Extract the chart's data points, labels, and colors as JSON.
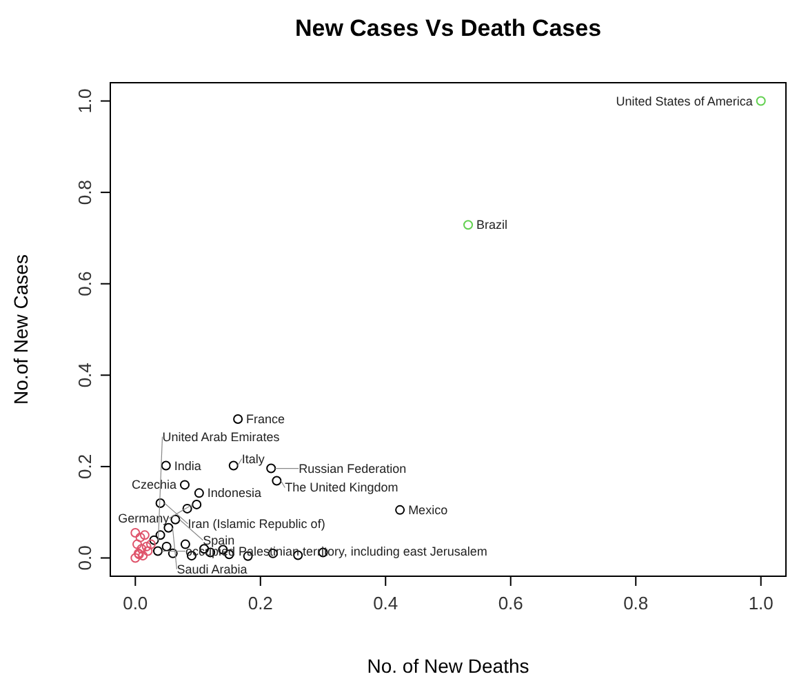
{
  "chart_data": {
    "type": "scatter",
    "title": "New Cases Vs Death Cases",
    "xlabel": "No. of New Deaths",
    "ylabel": "No.of New Cases",
    "xlim": [
      -0.04,
      1.04
    ],
    "ylim": [
      -0.04,
      1.04
    ],
    "xticks": [
      {
        "value": 0,
        "label": "0.0"
      },
      {
        "value": 0.2,
        "label": "0.2"
      },
      {
        "value": 0.4,
        "label": "0.4"
      },
      {
        "value": 0.6,
        "label": "0.6"
      },
      {
        "value": 0.8,
        "label": "0.8"
      },
      {
        "value": 1,
        "label": "1.0"
      }
    ],
    "yticks": [
      {
        "value": 0,
        "label": "0.0"
      },
      {
        "value": 0.2,
        "label": "0.2"
      },
      {
        "value": 0.4,
        "label": "0.4"
      },
      {
        "value": 0.6,
        "label": "0.6"
      },
      {
        "value": 0.8,
        "label": "0.8"
      },
      {
        "value": 1,
        "label": "1.0"
      }
    ],
    "marker": "circle",
    "grid": false,
    "series": [
      {
        "color": "#000000",
        "x": [
          0.164,
          0.049,
          0.157,
          0.217,
          0.226,
          0.079,
          0.102,
          0.04,
          0.098,
          0.083,
          0.423,
          0.064,
          0.053,
          0.03,
          0.036,
          0.06,
          0.09,
          0.12,
          0.15,
          0.18,
          0.22,
          0.26,
          0.3,
          0.05,
          0.08,
          0.11,
          0.14,
          0.04
        ],
        "values": [
          0.304,
          0.202,
          0.202,
          0.196,
          0.169,
          0.16,
          0.142,
          0.12,
          0.117,
          0.108,
          0.105,
          0.084,
          0.066,
          0.039,
          0.015,
          0.01,
          0.005,
          0.012,
          0.008,
          0.004,
          0.01,
          0.006,
          0.012,
          0.025,
          0.03,
          0.02,
          0.018,
          0.05
        ]
      },
      {
        "color": "#61d04f",
        "x": [
          1.0,
          0.532
        ],
        "values": [
          1.0,
          0.729
        ]
      },
      {
        "color": "#df536b",
        "x": [
          0.0,
          0.005,
          0.01,
          0.003,
          0.012,
          0.02,
          0.008,
          0.0,
          0.015,
          0.025,
          0.006,
          0.018
        ],
        "values": [
          0.0,
          0.01,
          0.02,
          0.03,
          0.005,
          0.015,
          0.045,
          0.055,
          0.05,
          0.03,
          0.008,
          0.025
        ]
      }
    ],
    "annotations": [
      {
        "text": "France",
        "x": 0.164,
        "y": 0.304
      },
      {
        "text": "India",
        "x": 0.049,
        "y": 0.202
      },
      {
        "text": "Italy",
        "x": 0.157,
        "y": 0.202
      },
      {
        "text": "Russian Federation",
        "x": 0.217,
        "y": 0.196
      },
      {
        "text": "The United Kingdom",
        "x": 0.226,
        "y": 0.169
      },
      {
        "text": "Czechia",
        "x": 0.079,
        "y": 0.16
      },
      {
        "text": "Indonesia",
        "x": 0.102,
        "y": 0.142
      },
      {
        "text": "Iran (Islamic Republic of)",
        "x": 0.04,
        "y": 0.12
      },
      {
        "text": "Germany",
        "x": 0.098,
        "y": 0.117
      },
      {
        "text": "Mexico",
        "x": 0.423,
        "y": 0.105
      },
      {
        "text": "Spain",
        "x": 0.064,
        "y": 0.084
      },
      {
        "text": "Saudi Arabia",
        "x": 0.053,
        "y": 0.066
      },
      {
        "text": "United Arab Emirates",
        "x": 0.03,
        "y": 0.039
      },
      {
        "text": "occupied Palestinian territory, including east Jerusalem",
        "x": 0.036,
        "y": 0.015
      },
      {
        "text": "Brazil",
        "x": 0.532,
        "y": 0.729
      },
      {
        "text": "United States of America",
        "x": 1.0,
        "y": 1.0
      }
    ]
  }
}
